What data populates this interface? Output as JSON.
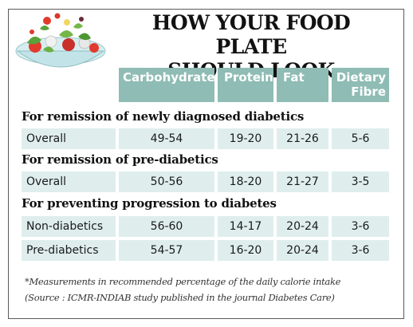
{
  "title": {
    "line1": "HOW YOUR FOOD PLATE",
    "line2": "SHOULD LOOK"
  },
  "columns": [
    "Carbohydrate",
    "Protein",
    "Fat",
    "Dietary\nFibre"
  ],
  "sections": [
    {
      "heading": "For remission of newly diagnosed diabetics",
      "rows": [
        {
          "label": "Overall",
          "values": [
            "49-54",
            "19-20",
            "21-26",
            "5-6"
          ]
        }
      ]
    },
    {
      "heading": "For remission of pre-diabetics",
      "rows": [
        {
          "label": "Overall",
          "values": [
            "50-56",
            "18-20",
            "21-27",
            "3-5"
          ]
        }
      ]
    },
    {
      "heading": "For preventing progression to diabetes",
      "rows": [
        {
          "label": "Non-diabetics",
          "values": [
            "56-60",
            "14-17",
            "20-24",
            "3-6"
          ]
        },
        {
          "label": "Pre-diabetics",
          "values": [
            "54-57",
            "16-20",
            "20-24",
            "3-6"
          ]
        }
      ]
    }
  ],
  "footnote": "*Measurements in recommended percentage of the daily calorie intake",
  "source": "(Source : ICMR-INDIAB study published in the journal Diabetes Care)",
  "colors": {
    "header": "#8fbcb4",
    "row": "#dfeeed",
    "border": "#5a5a5a"
  },
  "illustration": "salad-bowl-icon"
}
